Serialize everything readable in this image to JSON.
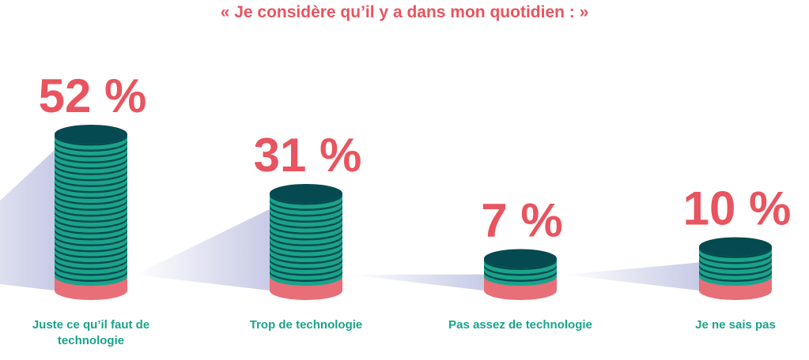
{
  "chart_data": {
    "type": "bar",
    "title": "« Je considère qu’il y a dans mon quotidien : »",
    "categories": [
      "Juste ce qu’il faut de technologie",
      "Trop de technologie",
      "Pas assez de technologie",
      "Je ne sais pas"
    ],
    "values": [
      52,
      31,
      7,
      10
    ],
    "value_labels": [
      "52 %",
      "31 %",
      "7 %",
      "10 %"
    ],
    "unit": "%",
    "colors": {
      "label": "#e8545f",
      "coin_light": "#1aa38a",
      "coin_dark": "#064a51",
      "base": "#e86e78",
      "category": "#1aa38a"
    }
  }
}
